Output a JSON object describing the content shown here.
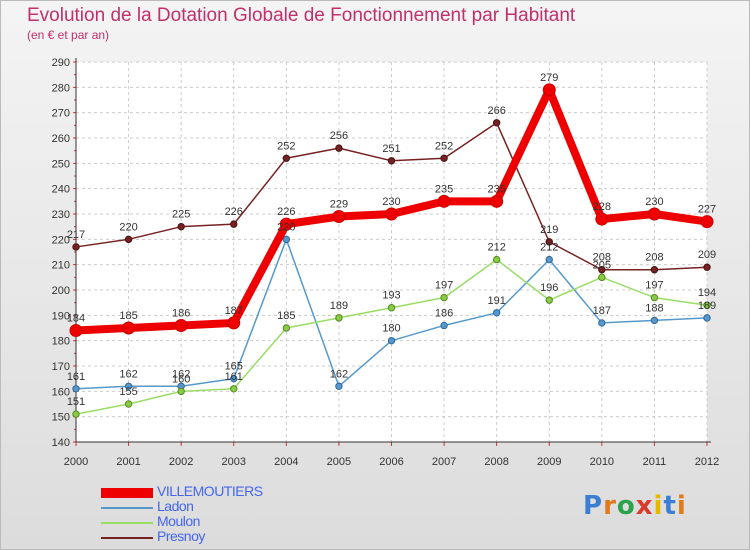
{
  "header": {
    "title": "Evolution de la Dotation Globale de Fonctionnement par Habitant",
    "subtitle": "(en € et par an)"
  },
  "logo": {
    "text": "Proxiti",
    "letter_colors": [
      "#3a7fd4",
      "#e07a1f",
      "#2aa34a",
      "#d93a2a",
      "#e6b800",
      "#3a7fd4",
      "#e07a1f"
    ]
  },
  "chart_data": {
    "type": "line",
    "title": "Evolution de la Dotation Globale de Fonctionnement par Habitant",
    "subtitle": "(en € et par an)",
    "xlabel": "",
    "ylabel": "",
    "categories": [
      "2000",
      "2001",
      "2002",
      "2003",
      "2004",
      "2005",
      "2006",
      "2007",
      "2008",
      "2009",
      "2010",
      "2011",
      "2012"
    ],
    "ylim": [
      140,
      290
    ],
    "yticks": [
      140,
      150,
      160,
      170,
      180,
      190,
      200,
      210,
      220,
      230,
      240,
      250,
      260,
      270,
      280,
      290
    ],
    "grid": true,
    "legend_position": "bottom-left",
    "series": [
      {
        "name": "VILLEMOUTIERS",
        "color": "#ee0000",
        "values": [
          184,
          185,
          186,
          187,
          226,
          229,
          230,
          235,
          235,
          279,
          228,
          230,
          227
        ]
      },
      {
        "name": "Ladon",
        "color": "#5599cc",
        "values": [
          161,
          162,
          162,
          165,
          220,
          162,
          180,
          186,
          191,
          212,
          187,
          188,
          189
        ]
      },
      {
        "name": "Moulon",
        "color": "#99dd66",
        "values": [
          151,
          155,
          160,
          161,
          185,
          189,
          193,
          197,
          212,
          196,
          205,
          197,
          194
        ]
      },
      {
        "name": "Presnoy",
        "color": "#772222",
        "values": [
          217,
          220,
          225,
          226,
          252,
          256,
          251,
          252,
          266,
          219,
          208,
          208,
          209
        ]
      }
    ]
  }
}
